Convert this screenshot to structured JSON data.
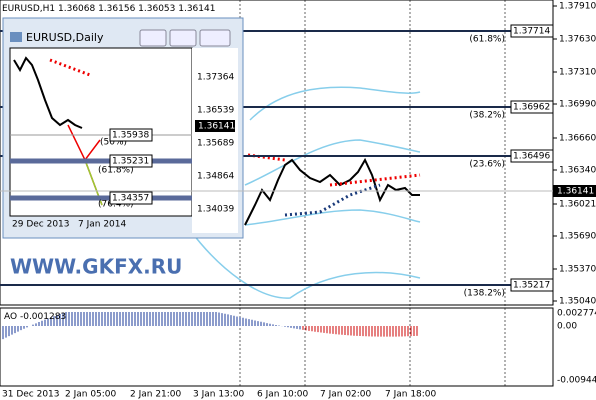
{
  "header": {
    "symbol": "EURUSD,H1",
    "ohlc": "1.36068 1.36156 1.36053 1.36141"
  },
  "price_axis": [
    "1.37910",
    "1.37630",
    "1.37310",
    "1.36990",
    "1.36660",
    "1.36340",
    "1.36021",
    "1.35690",
    "1.35370",
    "1.35040"
  ],
  "current_price": "1.36141",
  "fib_levels": [
    {
      "label": "(61.8%)",
      "price": "1.37714"
    },
    {
      "label": "(38.2%)",
      "price": "1.36962"
    },
    {
      "label": "(23.6%)",
      "price": "1.36496"
    },
    {
      "label": "(138.2%)",
      "price": "1.35217"
    }
  ],
  "time_axis": [
    "31 Dec 2013",
    "2 Jan 05:00",
    "2 Jan 21:00",
    "3 Jan 13:00",
    "6 Jan 10:00",
    "7 Jan 02:00",
    "7 Jan 18:00"
  ],
  "indicator": {
    "name": "AO",
    "value": "-0.001283",
    "axis": [
      "0.002774",
      "0.00",
      "-0.009442"
    ]
  },
  "inset": {
    "title": "EURUSD,Daily",
    "price_axis": [
      "1.37364",
      "1.36539",
      "1.35689",
      "1.34864",
      "1.34039"
    ],
    "current_price": "1.36141",
    "levels": [
      {
        "label": "(50%)",
        "price": "1.35938"
      },
      {
        "label": "(61.8%)",
        "price": "1.35231"
      },
      {
        "label": "(76.4%)",
        "price": "1.34357"
      }
    ],
    "dates": [
      "29 Dec 2013",
      "7 Jan 2014"
    ]
  },
  "watermark": "WWW.GKFX.RU"
}
